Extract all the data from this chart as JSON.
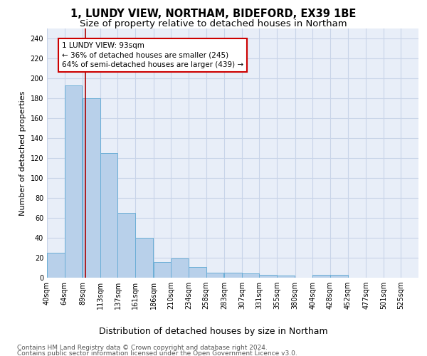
{
  "title1": "1, LUNDY VIEW, NORTHAM, BIDEFORD, EX39 1BE",
  "title2": "Size of property relative to detached houses in Northam",
  "xlabel": "Distribution of detached houses by size in Northam",
  "ylabel": "Number of detached properties",
  "bins_left": [
    40,
    64,
    89,
    113,
    137,
    161,
    186,
    210,
    234,
    258,
    283,
    307,
    331,
    355,
    380,
    404,
    428,
    452,
    477,
    501,
    525
  ],
  "bin_width": 24,
  "values": [
    25,
    193,
    180,
    125,
    65,
    40,
    16,
    19,
    11,
    5,
    5,
    4,
    3,
    2,
    0,
    3,
    3,
    0,
    0,
    0,
    0
  ],
  "bar_color": "#b8d0ea",
  "bar_edge_color": "#6baed6",
  "vline_x": 93,
  "vline_color": "#aa0000",
  "annotation_text": "1 LUNDY VIEW: 93sqm\n← 36% of detached houses are smaller (245)\n64% of semi-detached houses are larger (439) →",
  "annotation_box_color": "white",
  "annotation_box_edge_color": "#cc0000",
  "ylim": [
    0,
    250
  ],
  "yticks": [
    0,
    20,
    40,
    60,
    80,
    100,
    120,
    140,
    160,
    180,
    200,
    220,
    240
  ],
  "grid_color": "#c8d4e8",
  "bg_color": "#e8eef8",
  "footer1": "Contains HM Land Registry data © Crown copyright and database right 2024.",
  "footer2": "Contains public sector information licensed under the Open Government Licence v3.0.",
  "title1_fontsize": 10.5,
  "title2_fontsize": 9.5,
  "xlabel_fontsize": 9,
  "ylabel_fontsize": 8,
  "tick_fontsize": 7,
  "footer_fontsize": 6.5,
  "annot_fontsize": 7.5
}
